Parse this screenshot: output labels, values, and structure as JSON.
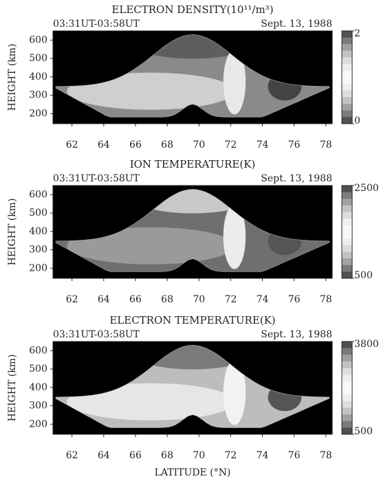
{
  "chart_data": [
    {
      "type": "contour",
      "title": "ELECTRON DENSITY(10¹¹/m³)",
      "subtitle_left": "03:31UT-03:58UT",
      "subtitle_right": "Sept. 13, 1988",
      "y_label": "HEIGHT (km)",
      "xlim": [
        60.8,
        78.4
      ],
      "xticks": [
        62,
        64,
        66,
        68,
        70,
        72,
        74,
        76,
        78
      ],
      "ylim": [
        145,
        650
      ],
      "yticks": [
        200,
        300,
        400,
        500,
        600
      ],
      "clim": [
        0,
        2
      ],
      "cticks": [
        0,
        2
      ]
    },
    {
      "type": "contour",
      "title": "ION TEMPERATURE(K)",
      "subtitle_left": "03:31UT-03:58UT",
      "subtitle_right": "Sept. 13, 1988",
      "y_label": "HEIGHT (km)",
      "xlim": [
        60.8,
        78.4
      ],
      "xticks": [
        62,
        64,
        66,
        68,
        70,
        72,
        74,
        76,
        78
      ],
      "ylim": [
        145,
        650
      ],
      "yticks": [
        200,
        300,
        400,
        500,
        600
      ],
      "clim": [
        500,
        2500
      ],
      "cticks": [
        500,
        2500
      ]
    },
    {
      "type": "contour",
      "title": "ELECTRON TEMPERATURE(K)",
      "subtitle_left": "03:31UT-03:58UT",
      "subtitle_right": "Sept. 13, 1988",
      "y_label": "HEIGHT (km)",
      "x_label": "LATITUDE (°N)",
      "xlim": [
        60.8,
        78.4
      ],
      "xticks": [
        62,
        64,
        66,
        68,
        70,
        72,
        74,
        76,
        78
      ],
      "ylim": [
        145,
        650
      ],
      "yticks": [
        200,
        300,
        400,
        500,
        600
      ],
      "clim": [
        500,
        3800
      ],
      "cticks": [
        500,
        3800
      ]
    }
  ]
}
